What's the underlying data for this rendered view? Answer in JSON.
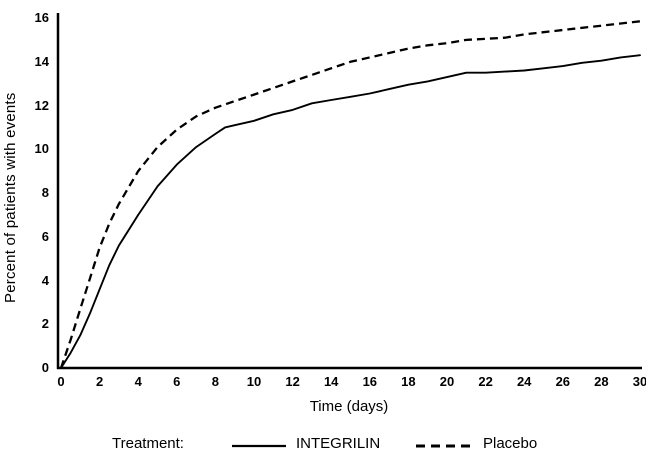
{
  "figure": {
    "background": "#ffffff",
    "line_color": "#000000"
  },
  "chart_data": {
    "type": "line",
    "title": "",
    "xlabel": "Time (days)",
    "ylabel": "Percent of patients with events",
    "xlim": [
      0,
      30
    ],
    "ylim": [
      0,
      16
    ],
    "x_ticks": [
      0,
      2,
      4,
      6,
      8,
      10,
      12,
      14,
      16,
      18,
      20,
      22,
      24,
      26,
      28,
      30
    ],
    "y_ticks": [
      0,
      2,
      4,
      6,
      8,
      10,
      12,
      14,
      16
    ],
    "grid": false,
    "legend": {
      "title": "Treatment:",
      "position": "bottom",
      "entries": [
        {
          "name": "INTEGRILIN",
          "style": "solid"
        },
        {
          "name": "Placebo",
          "style": "dashed"
        }
      ]
    },
    "x": [
      0,
      0.5,
      1,
      1.5,
      2,
      2.5,
      3,
      4,
      5,
      6,
      7,
      8,
      8.5,
      9,
      10,
      11,
      12,
      13,
      14,
      15,
      16,
      17,
      18,
      19,
      20,
      21,
      22,
      23,
      24,
      25,
      26,
      27,
      28,
      29,
      30
    ],
    "series": [
      {
        "name": "INTEGRILIN",
        "style": "solid",
        "values": [
          0,
          0.7,
          1.5,
          2.5,
          3.6,
          4.7,
          5.6,
          7.0,
          8.3,
          9.3,
          10.1,
          10.7,
          11.0,
          11.1,
          11.3,
          11.6,
          11.8,
          12.1,
          12.25,
          12.4,
          12.55,
          12.75,
          12.95,
          13.1,
          13.3,
          13.5,
          13.5,
          13.55,
          13.6,
          13.7,
          13.8,
          13.95,
          14.05,
          14.2,
          14.3
        ]
      },
      {
        "name": "Placebo",
        "style": "dashed",
        "values": [
          0,
          1.3,
          2.7,
          4.1,
          5.5,
          6.6,
          7.5,
          9.0,
          10.1,
          10.9,
          11.5,
          11.9,
          12.05,
          12.2,
          12.5,
          12.8,
          13.1,
          13.4,
          13.7,
          14.0,
          14.2,
          14.4,
          14.6,
          14.75,
          14.85,
          15.0,
          15.05,
          15.1,
          15.25,
          15.35,
          15.45,
          15.55,
          15.65,
          15.75,
          15.85
        ]
      }
    ]
  }
}
